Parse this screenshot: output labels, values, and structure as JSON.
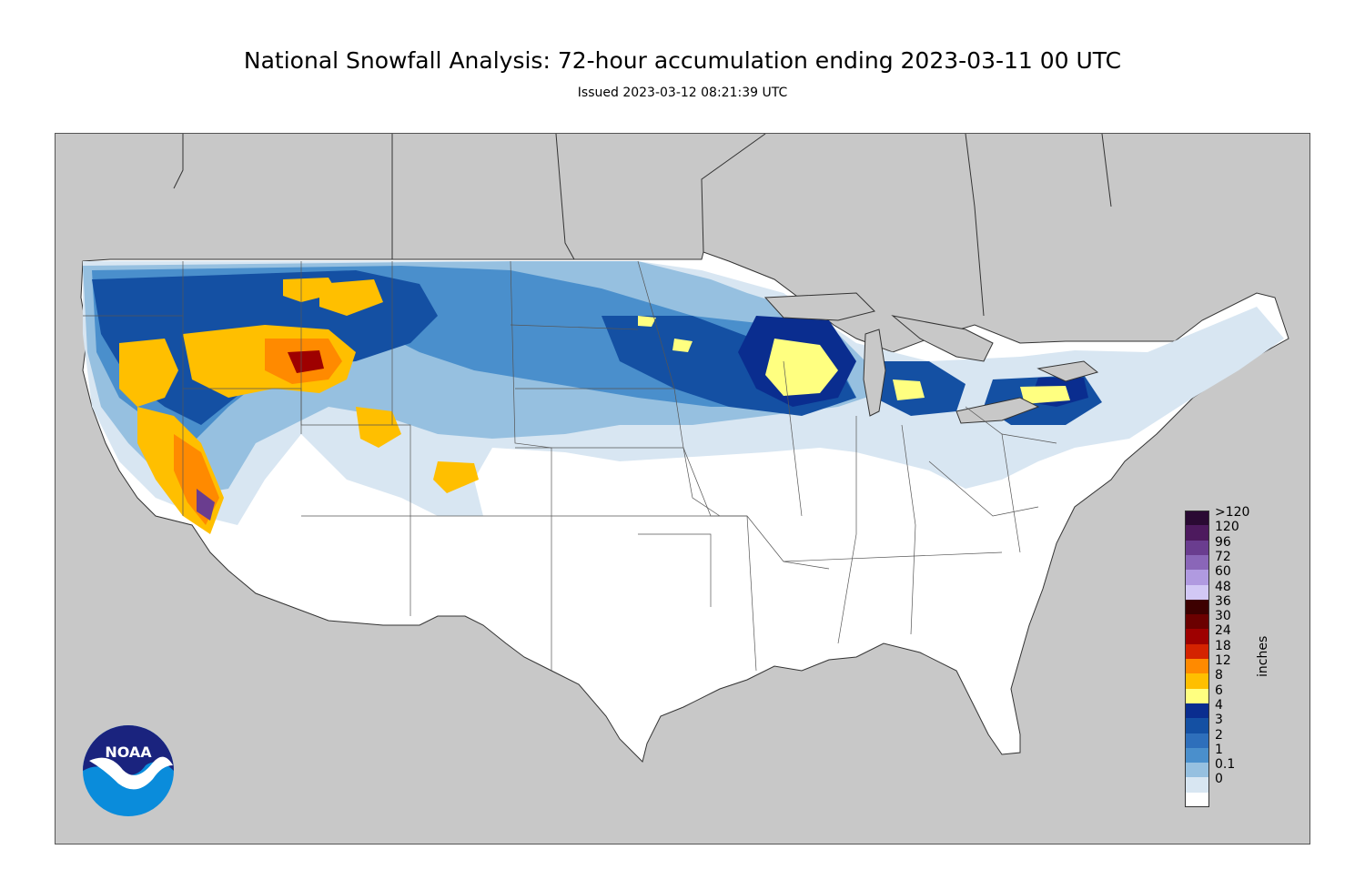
{
  "header": {
    "title": "National Snowfall Analysis: 72-hour accumulation ending 2023-03-11 00 UTC",
    "subtitle": "Issued 2023-03-12 08:21:39 UTC"
  },
  "map": {
    "region": "Contiguous United States",
    "background_color": "#c8c8c8",
    "land_color": "#ffffff",
    "boundary_color": "#333333"
  },
  "legend": {
    "units": "inches",
    "labels": [
      ">120",
      "120",
      "96",
      "72",
      "60",
      "48",
      "36",
      "30",
      "24",
      "18",
      "12",
      "8",
      "6",
      "4",
      "3",
      "2",
      "1",
      "0.1",
      "0"
    ],
    "colors": [
      "#2a0a33",
      "#4d1a5e",
      "#6a3d8f",
      "#8a66b8",
      "#b09ae0",
      "#d2c8f5",
      "#3d0000",
      "#6b0000",
      "#9e0000",
      "#d42300",
      "#ff8a00",
      "#ffbf00",
      "#ffff80",
      "#0a2d8f",
      "#1450a3",
      "#2e6fbb",
      "#4a8fcc",
      "#96c0e0",
      "#d8e6f2",
      "#ffffff"
    ]
  },
  "logo": {
    "text": "NOAA",
    "icon": "noaa-logo-icon"
  }
}
